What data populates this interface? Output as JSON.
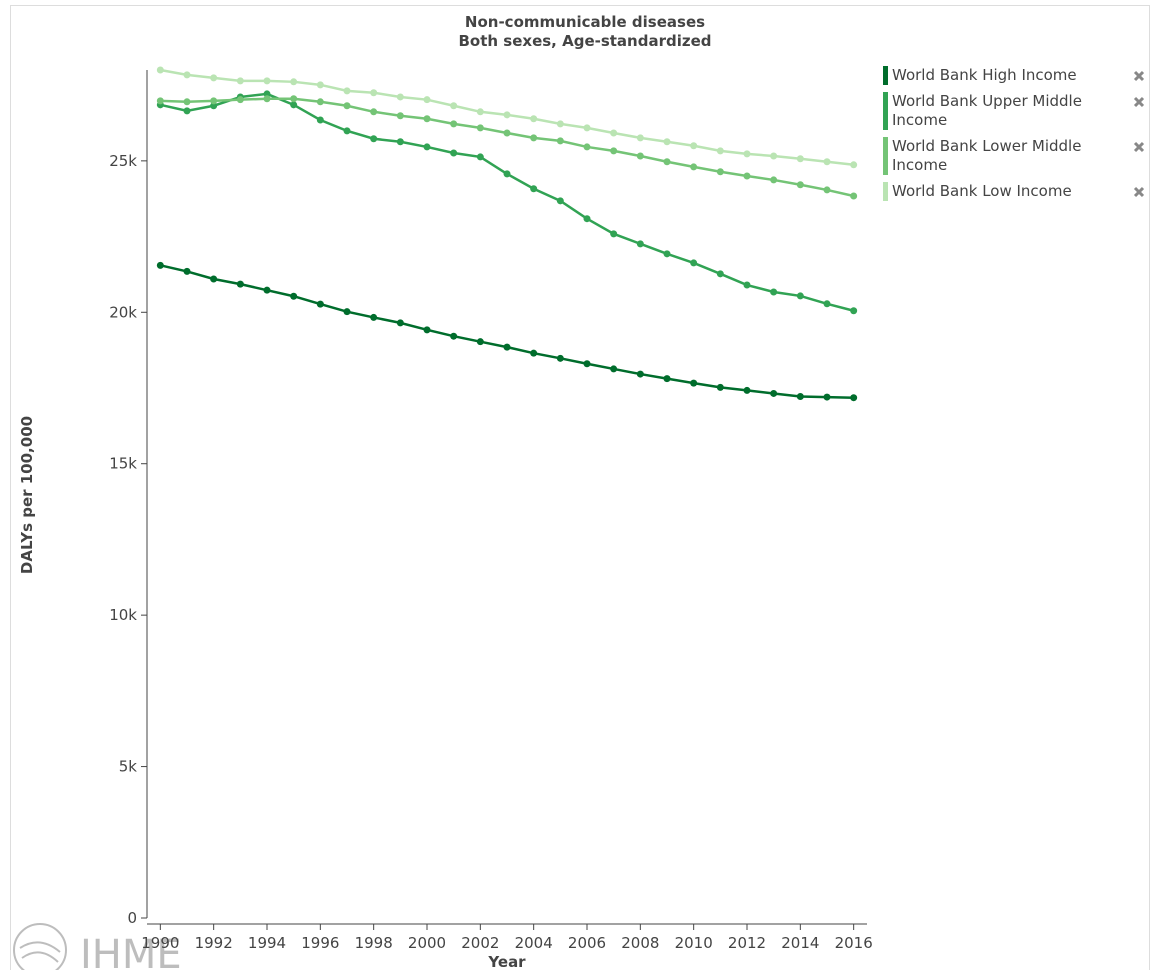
{
  "chart_data": {
    "type": "line",
    "title": "Non-communicable diseases",
    "subtitle": "Both sexes, Age-standardized",
    "x_label": "Year",
    "y_label": "DALYs per 100,000",
    "logo": "IHME",
    "x": [
      1990,
      1991,
      1992,
      1993,
      1994,
      1995,
      1996,
      1997,
      1998,
      1999,
      2000,
      2001,
      2002,
      2003,
      2004,
      2005,
      2006,
      2007,
      2008,
      2009,
      2010,
      2011,
      2012,
      2013,
      2014,
      2015,
      2016
    ],
    "xlim": [
      1989.5,
      2016.5
    ],
    "xticks": [
      1990,
      1992,
      1994,
      1996,
      1998,
      2000,
      2002,
      2004,
      2006,
      2008,
      2010,
      2012,
      2014,
      2016
    ],
    "ylim": [
      0,
      28000
    ],
    "yticks": [
      0,
      {
        "value": 5000,
        "label": "5k"
      },
      {
        "value": 10000,
        "label": "10k"
      },
      {
        "value": 15000,
        "label": "15k"
      },
      {
        "value": 20000,
        "label": "20k"
      },
      {
        "value": 25000,
        "label": "25k"
      }
    ],
    "series": [
      {
        "name": "World Bank High Income",
        "color": "#006d2c",
        "values": [
          21550,
          21350,
          21100,
          20930,
          20730,
          20530,
          20270,
          20020,
          19830,
          19650,
          19420,
          19210,
          19030,
          18850,
          18650,
          18480,
          18300,
          18130,
          17960,
          17810,
          17660,
          17520,
          17420,
          17320,
          17220,
          17200,
          17180
        ]
      },
      {
        "name": "World Bank Upper Middle Income",
        "color": "#31a354",
        "values": [
          26850,
          26650,
          26820,
          27110,
          27210,
          26850,
          26350,
          25990,
          25730,
          25630,
          25460,
          25260,
          25130,
          24570,
          24080,
          23680,
          23090,
          22590,
          22260,
          21930,
          21630,
          21270,
          20900,
          20670,
          20540,
          20280,
          20050
        ]
      },
      {
        "name": "World Bank Lower Middle Income",
        "color": "#74c476",
        "values": [
          26980,
          26950,
          26980,
          27020,
          27050,
          27050,
          26950,
          26820,
          26620,
          26490,
          26390,
          26220,
          26090,
          25920,
          25760,
          25660,
          25460,
          25330,
          25160,
          24970,
          24800,
          24640,
          24500,
          24370,
          24210,
          24040,
          23840
        ]
      },
      {
        "name": "World Bank Low Income",
        "color": "#bae4b3",
        "values": [
          28000,
          27840,
          27740,
          27640,
          27640,
          27610,
          27510,
          27310,
          27250,
          27110,
          27020,
          26820,
          26620,
          26520,
          26390,
          26220,
          26090,
          25920,
          25760,
          25630,
          25500,
          25330,
          25230,
          25160,
          25070,
          24970,
          24870
        ]
      }
    ]
  }
}
